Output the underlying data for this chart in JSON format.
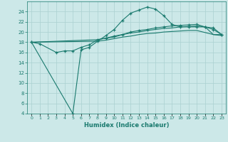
{
  "xlabel": "Humidex (Indice chaleur)",
  "line_color": "#1a7a6e",
  "bg_color": "#cce8e8",
  "grid_color": "#aad0d0",
  "ylim": [
    4,
    26
  ],
  "xlim": [
    -0.5,
    23.5
  ],
  "yticks": [
    4,
    6,
    8,
    10,
    12,
    14,
    16,
    18,
    20,
    22,
    24
  ],
  "xtick_labels": [
    "0",
    "1",
    "2",
    "3",
    "4",
    "5",
    "6",
    "7",
    "8",
    "9",
    "10",
    "11",
    "12",
    "13",
    "14",
    "15",
    "16",
    "17",
    "18",
    "19",
    "20",
    "21",
    "22",
    "23"
  ],
  "line1_x": [
    0,
    1,
    3,
    4,
    5,
    6,
    7,
    8,
    9,
    10,
    11,
    12,
    13,
    14,
    15,
    16,
    17,
    18,
    19,
    20,
    21,
    22,
    23
  ],
  "line1_y": [
    18.0,
    17.7,
    16.0,
    16.3,
    16.3,
    17.0,
    17.5,
    18.5,
    18.8,
    19.2,
    19.5,
    20.0,
    20.3,
    20.5,
    20.8,
    21.0,
    21.2,
    21.3,
    21.4,
    21.5,
    21.0,
    20.8,
    19.5
  ],
  "line2_x": [
    0,
    5,
    6,
    7,
    8,
    9,
    10,
    11,
    12,
    13,
    14,
    15,
    16,
    17,
    18,
    19,
    20,
    21,
    22,
    23
  ],
  "line2_y": [
    18.0,
    4.0,
    16.5,
    17.0,
    18.2,
    19.3,
    20.5,
    22.3,
    23.7,
    24.3,
    24.9,
    24.5,
    23.2,
    21.5,
    21.0,
    21.0,
    21.0,
    21.0,
    20.5,
    19.5
  ],
  "line3_x": [
    0,
    8,
    9,
    10,
    11,
    12,
    13,
    14,
    15,
    16,
    17,
    18,
    19,
    20,
    21,
    22,
    23
  ],
  "line3_y": [
    18.0,
    18.5,
    18.8,
    19.0,
    19.5,
    19.8,
    20.0,
    20.3,
    20.5,
    20.7,
    20.8,
    21.0,
    21.1,
    21.2,
    21.0,
    19.5,
    19.5
  ],
  "line4_x": [
    0,
    8,
    9,
    10,
    11,
    12,
    13,
    14,
    15,
    16,
    17,
    18,
    19,
    20,
    21,
    22,
    23
  ],
  "line4_y": [
    18.0,
    18.2,
    18.4,
    18.7,
    19.0,
    19.2,
    19.5,
    19.7,
    19.8,
    20.0,
    20.1,
    20.2,
    20.3,
    20.3,
    19.9,
    19.5,
    19.3
  ]
}
